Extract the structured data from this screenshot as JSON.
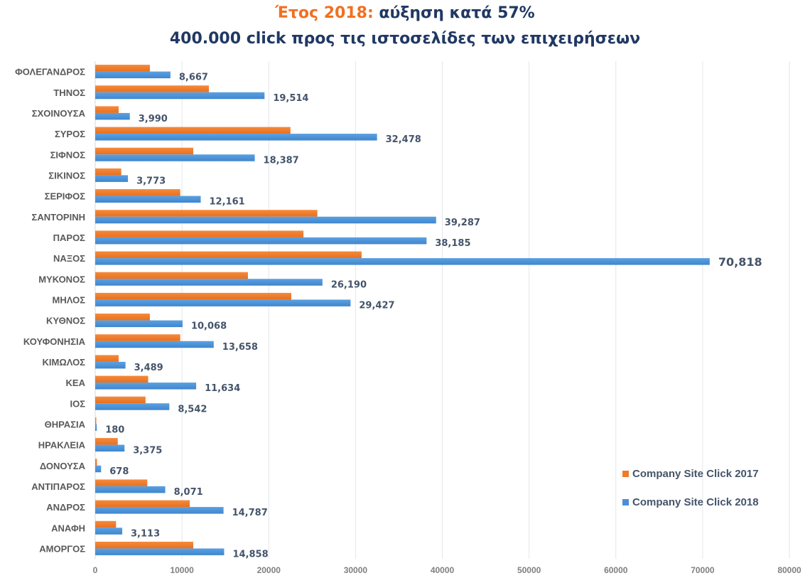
{
  "chart_data": {
    "type": "bar",
    "orientation": "horizontal",
    "title_line1_accent": "Έτος 2018:",
    "title_line1_rest": " αύξηση κατά 57%",
    "title_line2": "400.000 click προς τις ιστοσελίδες των επιχειρήσεων",
    "xlabel": "",
    "ylabel": "",
    "xlim": [
      0,
      80000
    ],
    "xticks": [
      "0",
      "10000",
      "20000",
      "30000",
      "40000",
      "50000",
      "60000",
      "70000",
      "80000"
    ],
    "xtick_values": [
      0,
      10000,
      20000,
      30000,
      40000,
      50000,
      60000,
      70000,
      80000
    ],
    "grid": true,
    "legend_position": "bottom-right",
    "categories": [
      "ΦΟΛΕΓΑΝΔΡΟΣ",
      "ΤΗΝΟΣ",
      "ΣΧΟΙΝΟΥΣΑ",
      "ΣΥΡΟΣ",
      "ΣΙΦΝΟΣ",
      "ΣΙΚΙΝΟΣ",
      "ΣΕΡΙΦΟΣ",
      "ΣΑΝΤΟΡΙΝΗ",
      "ΠΑΡΟΣ",
      "ΝΑΞΟΣ",
      "ΜΥΚΟΝΟΣ",
      "ΜΗΛΟΣ",
      "ΚΥΘΝΟΣ",
      "ΚΟΥΦΟΝΗΣΙΑ",
      "ΚΙΜΩΛΟΣ",
      "ΚΕΑ",
      "ΙΟΣ",
      "ΘΗΡΑΣΙΑ",
      "ΗΡΑΚΛΕΙΑ",
      "ΔΟΝΟΥΣΑ",
      "ΑΝΤΙΠΑΡΟΣ",
      "ΑΝΔΡΟΣ",
      "ΑΝΑΦΗ",
      "ΑΜΟΡΓΟΣ"
    ],
    "series": [
      {
        "name": "Company Site Click 2017",
        "color": "#F07A2A",
        "values": [
          6300,
          13100,
          2700,
          22500,
          11300,
          3000,
          9800,
          25600,
          24000,
          30700,
          17600,
          22600,
          6300,
          9800,
          2700,
          6100,
          5800,
          100,
          2600,
          200,
          6000,
          10900,
          2400,
          11300
        ]
      },
      {
        "name": "Company Site Click 2018",
        "color": "#4A90D6",
        "values": [
          8667,
          19514,
          3990,
          32478,
          18387,
          3773,
          12161,
          39287,
          38185,
          70818,
          26190,
          29427,
          10068,
          13658,
          3489,
          11634,
          8542,
          180,
          3375,
          678,
          8071,
          14787,
          3113,
          14858
        ],
        "data_labels": [
          "8,667",
          "19,514",
          "3,990",
          "32,478",
          "18,387",
          "3,773",
          "12,161",
          "39,287",
          "38,185",
          "70,818",
          "26,190",
          "29,427",
          "10,068",
          "13,658",
          "3,489",
          "11,634",
          "8,542",
          "180",
          "3,375",
          "678",
          "8,071",
          "14,787",
          "3,113",
          "14,858"
        ]
      }
    ]
  },
  "legend": {
    "items": [
      {
        "label": "Company Site Click 2017",
        "color": "#F07A2A"
      },
      {
        "label": "Company Site Click 2018",
        "color": "#4A90D6"
      }
    ]
  }
}
